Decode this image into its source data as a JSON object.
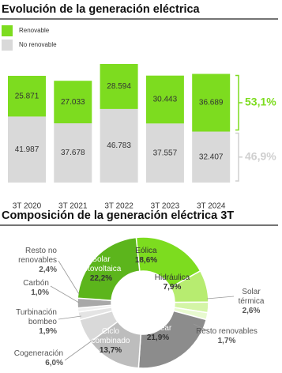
{
  "chart_data": [
    {
      "type": "stacked-bar",
      "title": "Evolución de la generación eléctrica",
      "categories": [
        "3T 2020",
        "3T 2021",
        "3T 2022",
        "3T 2023",
        "3T 2024"
      ],
      "series": [
        {
          "name": "Renovable",
          "color": "#7ddc1f",
          "values": [
            25871,
            27033,
            28594,
            30443,
            36689
          ],
          "value_labels": [
            "25.871",
            "27.033",
            "28.594",
            "30.443",
            "36.689"
          ],
          "share": 53.1,
          "share_label": "53,1%"
        },
        {
          "name": "No renovable",
          "color": "#d9d9d9",
          "values": [
            41987,
            37678,
            46783,
            37557,
            32407
          ],
          "value_labels": [
            "41.987",
            "37.678",
            "46.783",
            "37.557",
            "32.407"
          ],
          "share": 46.9,
          "share_label": "46,9%"
        }
      ]
    },
    {
      "type": "donut",
      "title": "Composición de la generación eléctrica 3T",
      "categories": [
        "Eólica",
        "Hidráulica",
        "Solar térmica",
        "Resto renovables",
        "Nuclear",
        "Ciclo combinado",
        "Cogeneración",
        "Turbinación bombeo",
        "Carbón",
        "Resto no renovables",
        "Solar fotovoltaica"
      ],
      "values": [
        18.6,
        7.9,
        2.6,
        1.7,
        21.9,
        13.7,
        6.0,
        1.9,
        1.0,
        2.4,
        22.2
      ],
      "value_labels": [
        "18,6%",
        "7,9%",
        "2,6%",
        "1,7%",
        "21,9%",
        "13,7%",
        "6,0%",
        "1,9%",
        "1,0%",
        "2,4%",
        "22,2%"
      ],
      "colors": [
        "#7ddc1f",
        "#b7ec70",
        "#d4f5a6",
        "#e8fad0",
        "#8c8c8c",
        "#bdbdbd",
        "#d9d9d9",
        "#e4e4e4",
        "#efefef",
        "#a8a8a8",
        "#5cb51c"
      ]
    }
  ]
}
